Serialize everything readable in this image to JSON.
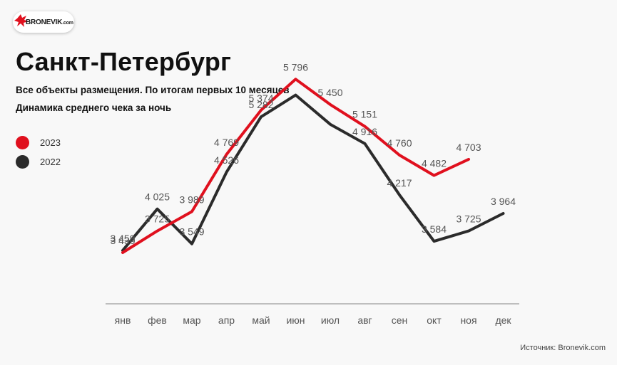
{
  "logo": {
    "text": "BRONEVIK",
    "suffix": ".com"
  },
  "title": "Санкт-Петербург",
  "subtitle": "Все объекты размещения. По итогам первых 10 месяцев",
  "subtitle2": "Динамика среднего чека за ночь",
  "source": "Источник: Bronevik.com",
  "colors": {
    "series_2023": "#e0101e",
    "series_2022": "#2b2b2b",
    "axis": "#9a9a9a",
    "logo_red": "#e0101e"
  },
  "chart_data": {
    "type": "line",
    "categories": [
      "янв",
      "фев",
      "мар",
      "апр",
      "май",
      "июн",
      "июл",
      "авг",
      "сен",
      "окт",
      "ноя",
      "дек"
    ],
    "series": [
      {
        "name": "2023",
        "values": [
          3430,
          3725,
          3989,
          4769,
          5374,
          5796,
          5450,
          5151,
          4760,
          4482,
          4703,
          null
        ],
        "labels": [
          "3 430",
          "3 725",
          "3 989",
          "4 769",
          "5 374",
          "5 796",
          "5 450",
          "5 151",
          "4 760",
          "4 482",
          "4 703",
          ""
        ]
      },
      {
        "name": "2022",
        "values": [
          3459,
          4025,
          3549,
          4526,
          5282,
          5580,
          5180,
          4916,
          4217,
          3584,
          3725,
          3964
        ],
        "labels": [
          "3 459",
          "4 025",
          "3 549",
          "4 526",
          "5 282",
          "",
          "",
          "4 916",
          "4 217",
          "3 584",
          "3 725",
          "3 964"
        ]
      }
    ],
    "ylim": [
      2750,
      6100
    ],
    "grid": false,
    "legend_position": "top-left"
  }
}
